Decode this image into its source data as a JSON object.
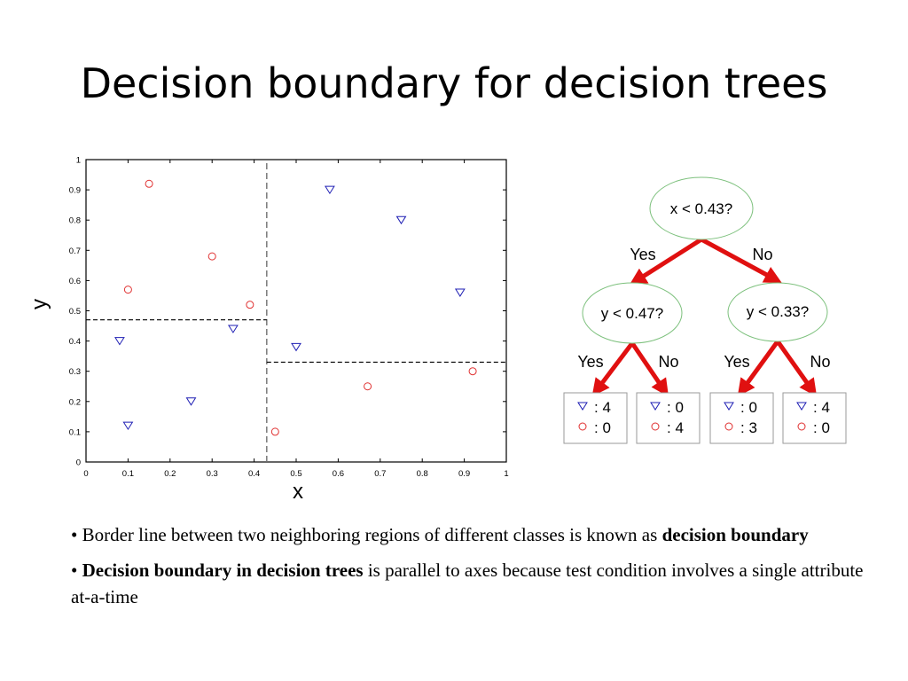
{
  "title": "Decision boundary for decision trees",
  "chart_data": {
    "type": "scatter",
    "xlabel": "x",
    "ylabel": "y",
    "xlim": [
      0,
      1
    ],
    "ylim": [
      0,
      1
    ],
    "xticks": [
      "0",
      "0.1",
      "0.2",
      "0.3",
      "0.4",
      "0.5",
      "0.6",
      "0.7",
      "0.8",
      "0.9",
      "1"
    ],
    "yticks": [
      "0",
      "0.1",
      "0.2",
      "0.3",
      "0.4",
      "0.5",
      "0.6",
      "0.7",
      "0.8",
      "0.9",
      "1"
    ],
    "series": [
      {
        "marker": "triangle-down",
        "color": "#1f1fb4",
        "points": [
          [
            0.08,
            0.4
          ],
          [
            0.1,
            0.12
          ],
          [
            0.25,
            0.2
          ],
          [
            0.35,
            0.44
          ],
          [
            0.5,
            0.38
          ],
          [
            0.58,
            0.9
          ],
          [
            0.75,
            0.8
          ],
          [
            0.89,
            0.56
          ]
        ]
      },
      {
        "marker": "circle",
        "color": "#e03030",
        "points": [
          [
            0.15,
            0.92
          ],
          [
            0.1,
            0.57
          ],
          [
            0.3,
            0.68
          ],
          [
            0.39,
            0.52
          ],
          [
            0.45,
            0.1
          ],
          [
            0.67,
            0.25
          ],
          [
            0.92,
            0.3
          ]
        ]
      }
    ],
    "boundaries": [
      {
        "axis": "x",
        "value": 0.43,
        "from": 0,
        "to": 1,
        "style": "dashed-gray"
      },
      {
        "axis": "y",
        "value": 0.47,
        "from": 0,
        "to": 0.43,
        "style": "dashed-black"
      },
      {
        "axis": "y",
        "value": 0.33,
        "from": 0.43,
        "to": 1,
        "style": "dashed-black"
      }
    ]
  },
  "tree": {
    "root": "x < 0.43?",
    "left_node": "y < 0.47?",
    "right_node": "y < 0.33?",
    "edges": [
      "Yes",
      "No",
      "Yes",
      "No",
      "Yes",
      "No"
    ],
    "leaves": [
      {
        "triangle": ": 4",
        "circle": ": 0"
      },
      {
        "triangle": ": 0",
        "circle": ": 4"
      },
      {
        "triangle": ": 0",
        "circle": ": 3"
      },
      {
        "triangle": ": 4",
        "circle": ": 0"
      }
    ],
    "edge_color": "#e01010",
    "node_border": "#7cc07c"
  },
  "bullets": [
    {
      "text": "• Border line between two neighboring regions of different classes is known as ",
      "bold": "decision boundary"
    },
    {
      "bold_lead": "Decision boundary in decision trees",
      "text": " is parallel to axes because test condition involves a single attribute at-a-time"
    }
  ]
}
